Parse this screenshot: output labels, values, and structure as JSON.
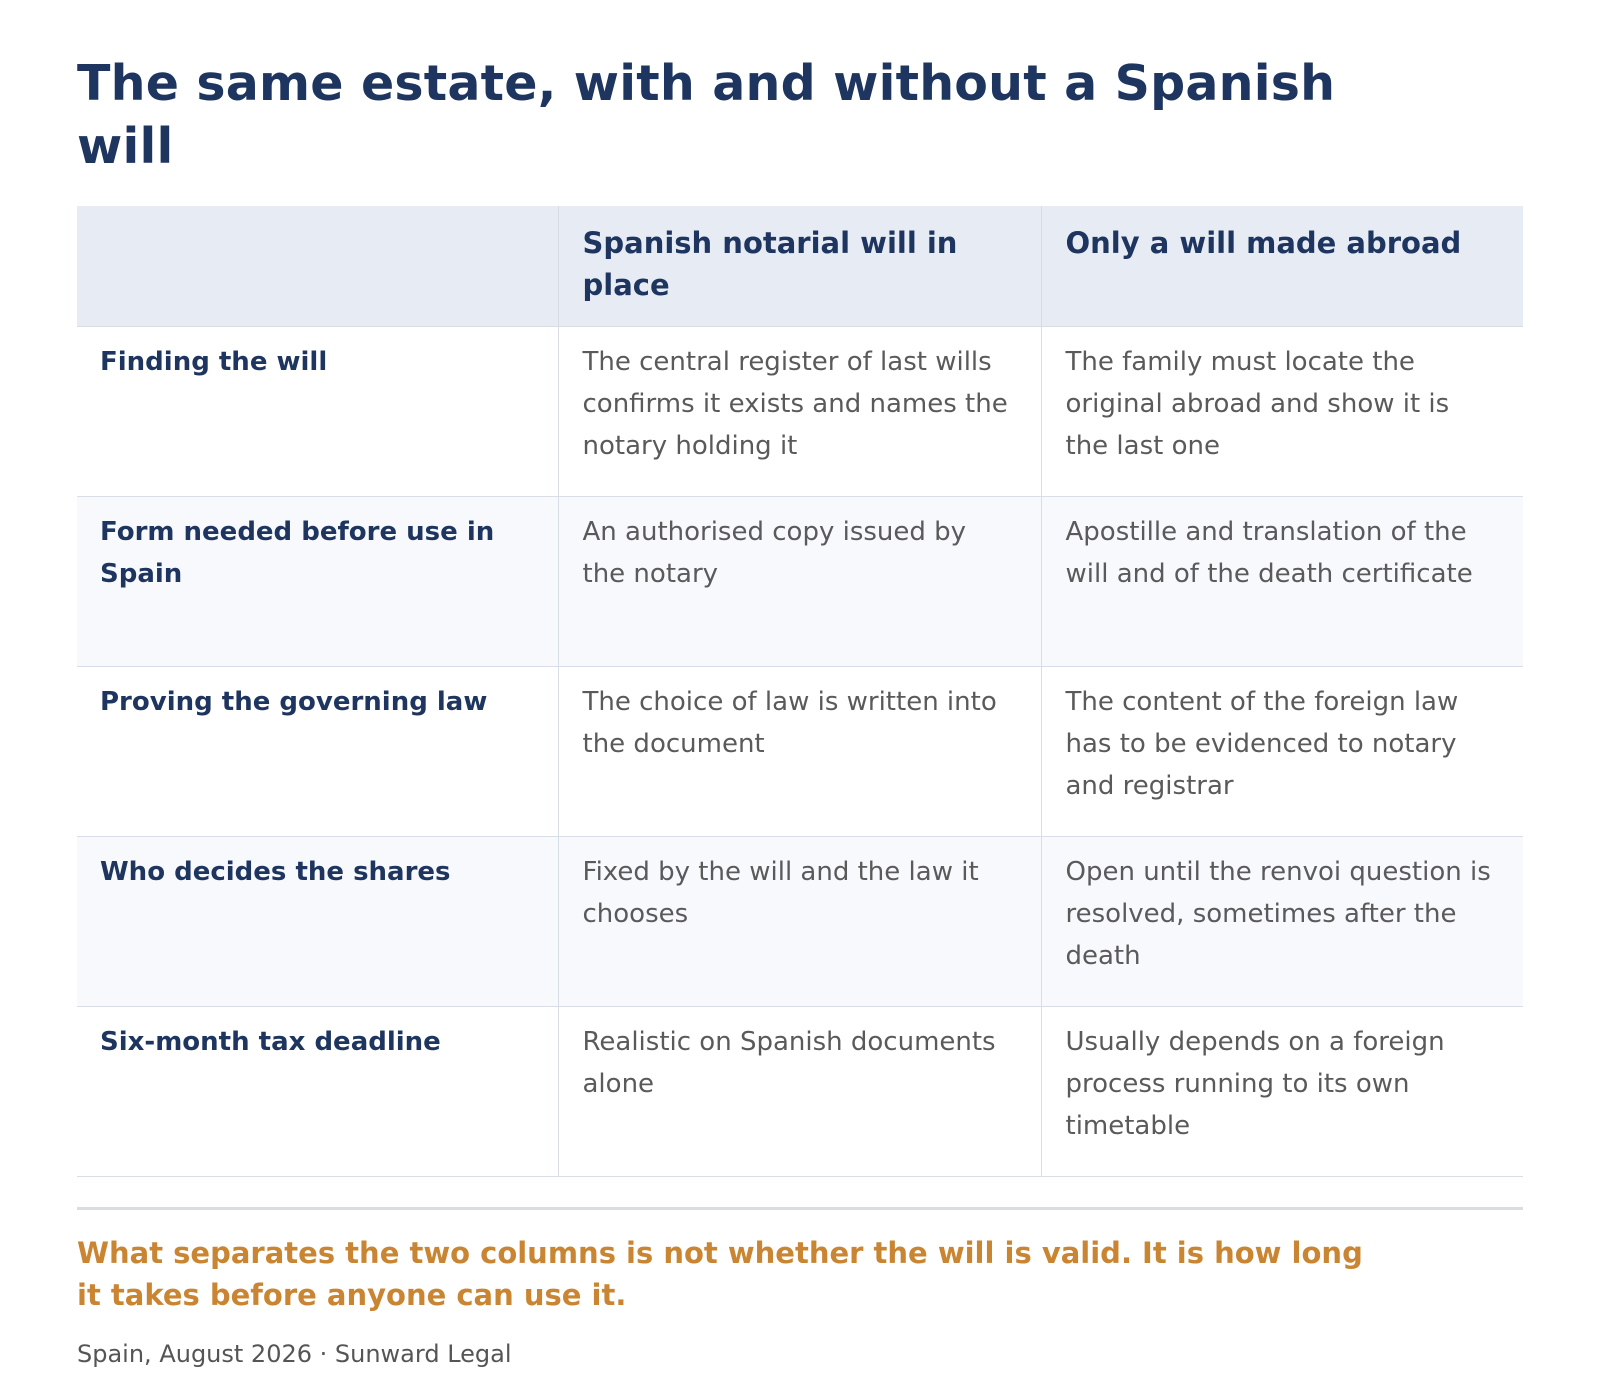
{
  "title": "The same estate, with and without a Spanish will",
  "table": {
    "headers": [
      "",
      "Spanish notarial will in place",
      "Only a will made abroad"
    ],
    "rows": [
      {
        "label": "Finding the will",
        "spanish": "The central register of last wills confirms it exists and names the notary holding it",
        "abroad": "The family must locate the original abroad and show it is the last one"
      },
      {
        "label": "Form needed before use in Spain",
        "spanish": "An authorised copy issued by the notary",
        "abroad": "Apostille and translation of the will and of the death certificate"
      },
      {
        "label": "Proving the governing law",
        "spanish": "The choice of law is written into the document",
        "abroad": "The content of the foreign law has to be evidenced to notary and registrar"
      },
      {
        "label": "Who decides the shares",
        "spanish": "Fixed by the will and the law it chooses",
        "abroad": "Open until the renvoi question is resolved, sometimes after the death"
      },
      {
        "label": "Six-month tax deadline",
        "spanish": "Realistic on Spanish documents alone",
        "abroad": "Usually depends on a foreign process running to its own timetable"
      }
    ]
  },
  "callout": "What separates the two columns is not whether the will is valid. It is how long it takes before anyone can use it.",
  "footer": "Spain, August 2026 · Sunward Legal",
  "colors": {
    "navy": "#1e3560",
    "accent": "#c98532",
    "header_bg": "#e7ebf4",
    "alt_row_bg": "#f8f9fc",
    "body_text": "#5a5a5a"
  }
}
